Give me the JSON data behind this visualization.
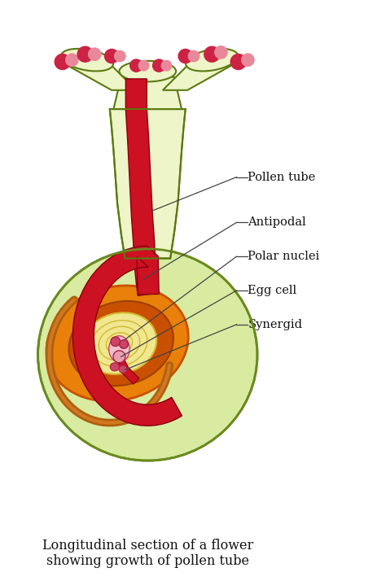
{
  "title": "Longitudinal section of a flower\nshowing growth of pollen tube",
  "title_fontsize": 11.5,
  "background_color": "#ffffff",
  "labels": {
    "pollen_tube": "Pollen tube",
    "antipodal": "Antipodal",
    "polar_nuclei": "Polar nuclei",
    "egg_cell": "Egg cell",
    "synergid": "Synergid"
  },
  "colors": {
    "body_fill": "#eef5c8",
    "body_outline": "#5a7a10",
    "pollen_tube_fill": "#cc1122",
    "pollen_tube_dark": "#8a0010",
    "pollen_grain_dark": "#cc2244",
    "pollen_grain_light": "#e8889a",
    "ovary_fill": "#d8eba0",
    "ovary_outline": "#6a8a20",
    "ovule_orange": "#e8800a",
    "ovule_darkorange": "#c85000",
    "ovule_yellow": "#d4b830",
    "embryo_sac_fill": "#f0e890",
    "embryo_cell": "#e8a0b0",
    "embryo_cell_dark": "#cc4466",
    "funiculus": "#b06010",
    "label_color": "#111111",
    "line_color": "#444444"
  }
}
